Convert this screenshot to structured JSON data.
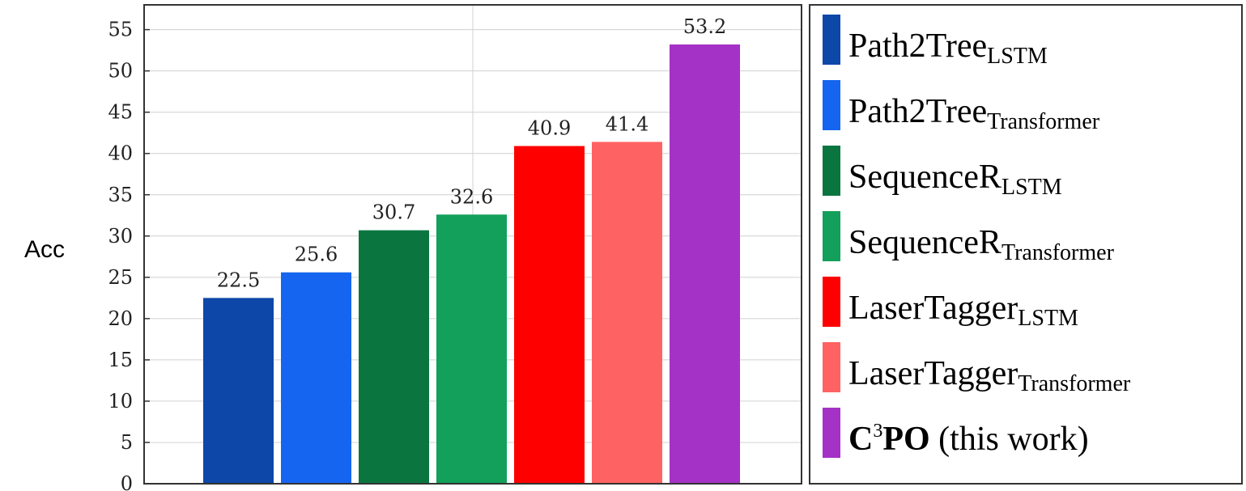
{
  "chart_data": {
    "type": "bar",
    "ylabel": "Acc",
    "ylim": [
      0,
      58
    ],
    "yticks": [
      0,
      5,
      10,
      15,
      20,
      25,
      30,
      35,
      40,
      45,
      50,
      55
    ],
    "grid": true,
    "legend_position": "right",
    "categories": [
      "Path2Tree_LSTM",
      "Path2Tree_Transformer",
      "SequenceR_LSTM",
      "SequenceR_Transformer",
      "LaserTagger_LSTM",
      "LaserTagger_Transformer",
      "C3PO (this work)"
    ],
    "values": [
      22.5,
      25.6,
      30.7,
      32.6,
      40.9,
      41.4,
      53.2
    ],
    "value_labels": [
      "22.5",
      "25.6",
      "30.7",
      "32.6",
      "40.9",
      "41.4",
      "53.2"
    ],
    "colors": [
      "#0d47a8",
      "#1565f0",
      "#0b7540",
      "#12a05a",
      "#ff0000",
      "#ff6262",
      "#a532c6"
    ],
    "legend": [
      {
        "base": "Path2Tree",
        "sub": "LSTM",
        "color": "#0d47a8"
      },
      {
        "base": "Path2Tree",
        "sub": "Transformer",
        "color": "#1565f0"
      },
      {
        "base": "SequenceR",
        "sub": "LSTM",
        "color": "#0b7540"
      },
      {
        "base": "SequenceR",
        "sub": "Transformer",
        "color": "#12a05a"
      },
      {
        "base": "LaserTagger",
        "sub": "LSTM",
        "color": "#ff0000"
      },
      {
        "base": "LaserTagger",
        "sub": "Transformer",
        "color": "#ff6262"
      },
      {
        "base_bold": "C",
        "sup": "3",
        "bold_rest": "PO",
        "rest": " (this work)",
        "color": "#a532c6"
      }
    ]
  }
}
